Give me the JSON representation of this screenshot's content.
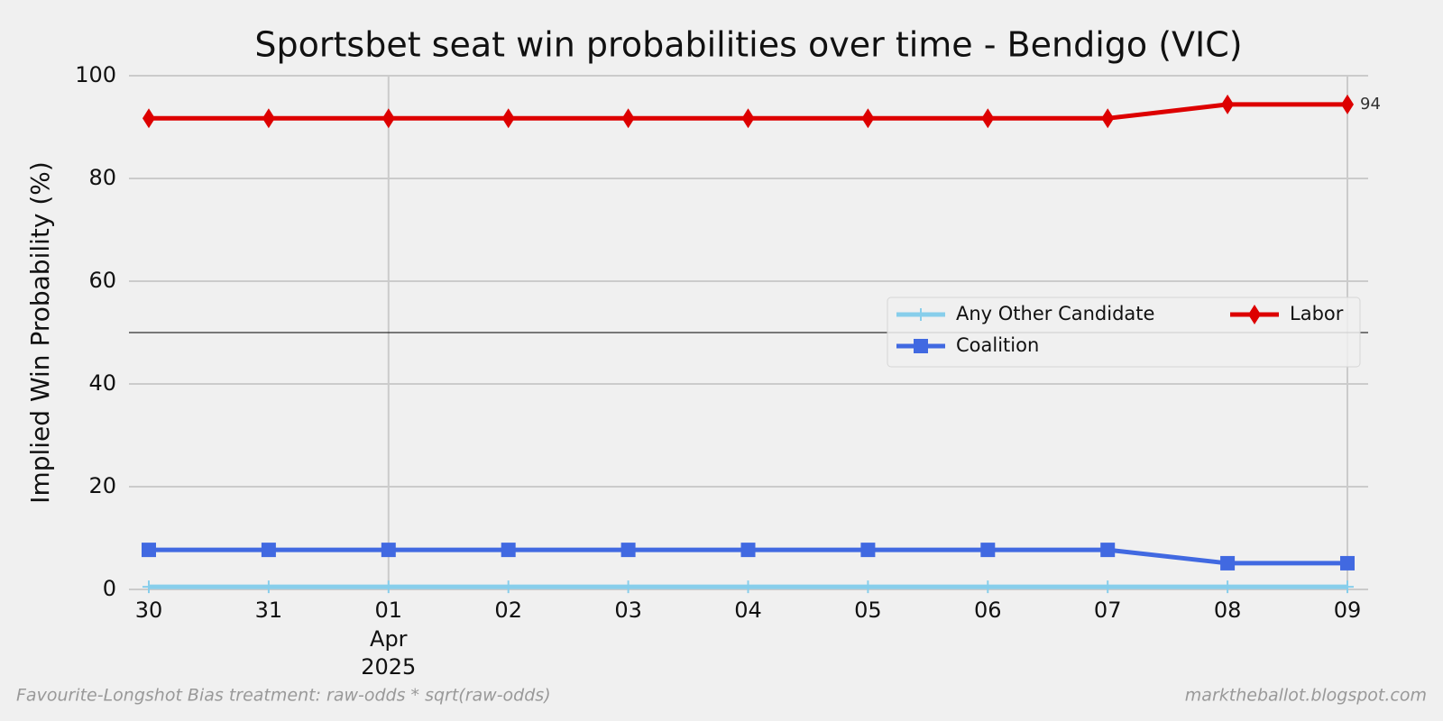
{
  "chart_data": {
    "type": "line",
    "title": "Sportsbet seat win probabilities over time - Bendigo (VIC)",
    "y_label": "Implied Win Probability (%)",
    "categories": [
      "30",
      "31",
      "01",
      "02",
      "03",
      "04",
      "05",
      "06",
      "07",
      "08",
      "09"
    ],
    "category_months": [
      null,
      null,
      "Apr",
      null,
      null,
      null,
      null,
      null,
      null,
      null,
      null
    ],
    "category_years": [
      null,
      null,
      "2025",
      null,
      null,
      null,
      null,
      null,
      null,
      null,
      null
    ],
    "series": [
      {
        "name": "Any Other Candidate",
        "color": "#87ceeb",
        "marker": "plus",
        "values": [
          0.5,
          0.5,
          0.5,
          0.5,
          0.5,
          0.5,
          0.5,
          0.5,
          0.5,
          0.5,
          0.5
        ]
      },
      {
        "name": "Coalition",
        "color": "#4169e1",
        "marker": "square",
        "values": [
          7.7,
          7.7,
          7.7,
          7.7,
          7.7,
          7.7,
          7.7,
          7.7,
          7.7,
          5.1,
          5.1
        ]
      },
      {
        "name": "Labor",
        "color": "#dd0000",
        "marker": "diamond",
        "values": [
          91.7,
          91.7,
          91.7,
          91.7,
          91.7,
          91.7,
          91.7,
          91.7,
          91.7,
          94.4,
          94.4
        ],
        "value_labels": [
          null,
          null,
          null,
          null,
          null,
          null,
          null,
          null,
          null,
          null,
          "94"
        ]
      }
    ],
    "ylim": [
      0,
      100
    ],
    "yticks": [
      0,
      20,
      40,
      60,
      80,
      100
    ],
    "grid": true,
    "hline": 50,
    "legend_position": "right",
    "footer_left": "Favourite-Longshot Bias treatment: raw-odds * sqrt(raw-odds)",
    "footer_right": "marktheballot.blogspot.com"
  }
}
